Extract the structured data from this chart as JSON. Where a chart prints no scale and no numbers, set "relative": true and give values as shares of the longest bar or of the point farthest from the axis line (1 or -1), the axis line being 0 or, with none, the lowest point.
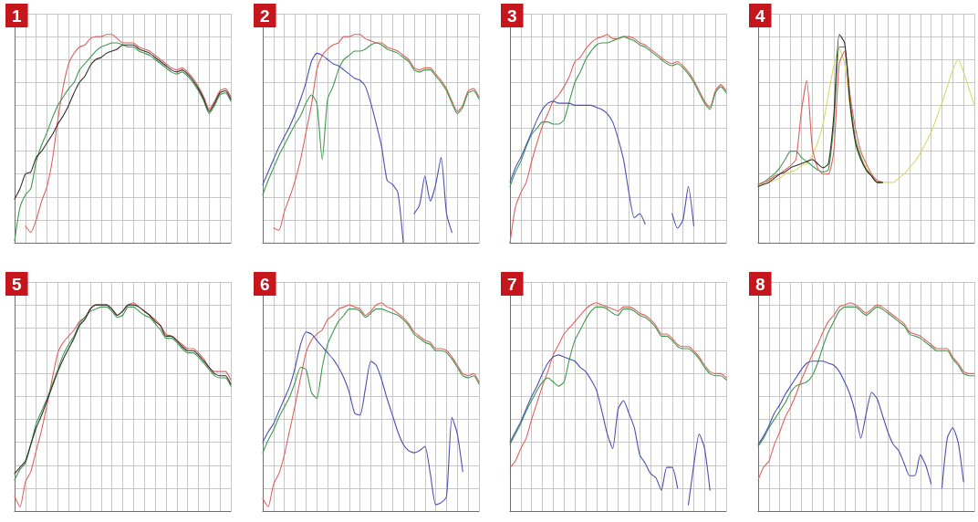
{
  "chart_data": [
    {
      "type": "line",
      "title": "1",
      "relative": true,
      "grid": true,
      "categories": [
        null,
        null,
        null,
        null,
        null,
        null,
        null,
        null,
        null,
        null,
        null,
        null,
        null,
        null,
        null,
        null,
        null,
        null,
        null,
        null,
        null,
        null,
        null,
        null,
        null,
        null,
        null,
        null,
        null,
        null,
        null,
        null,
        null,
        null,
        null,
        null,
        null,
        null,
        null,
        null,
        null
      ],
      "series": [
        {
          "color": "#e0625f",
          "values": [
            null,
            null,
            0.08,
            0.05,
            0.11,
            0.2,
            0.27,
            0.4,
            0.59,
            0.75,
            0.86,
            0.91,
            0.94,
            0.95,
            0.98,
            0.99,
            0.99,
            1,
            1,
            0.98,
            0.96,
            0.96,
            0.96,
            0.94,
            0.93,
            0.92,
            0.9,
            0.88,
            0.86,
            0.84,
            0.83,
            0.84,
            0.82,
            0.79,
            0.75,
            0.7,
            0.64,
            0.68,
            0.73,
            0.74,
            0.7
          ]
        },
        {
          "color": "#3f9a4f",
          "values": [
            0.01,
            0.17,
            0.23,
            0.26,
            0.39,
            0.47,
            0.53,
            0.6,
            0.66,
            0.7,
            0.74,
            0.77,
            0.83,
            0.86,
            0.89,
            0.92,
            0.94,
            0.95,
            0.96,
            0.96,
            0.95,
            0.94,
            0.94,
            0.92,
            0.91,
            0.9,
            0.88,
            0.86,
            0.84,
            0.82,
            0.81,
            0.82,
            0.8,
            0.77,
            0.73,
            0.68,
            0.62,
            0.66,
            0.71,
            0.72,
            0.68
          ]
        },
        {
          "color": "#2e2e2e",
          "values": [
            0.21,
            0.26,
            0.33,
            0.34,
            0.41,
            0.44,
            0.48,
            0.52,
            0.57,
            0.61,
            0.66,
            0.72,
            0.77,
            0.8,
            0.85,
            0.88,
            0.89,
            0.91,
            0.92,
            0.93,
            0.95,
            0.95,
            0.95,
            0.93,
            0.92,
            0.91,
            0.89,
            0.87,
            0.85,
            0.83,
            0.82,
            0.83,
            0.81,
            0.78,
            0.74,
            0.69,
            0.63,
            0.67,
            0.72,
            0.73,
            0.69
          ]
        }
      ]
    },
    {
      "type": "line",
      "title": "2",
      "relative": true,
      "grid": true,
      "categories": [
        null,
        null,
        null,
        null,
        null,
        null,
        null,
        null,
        null,
        null,
        null,
        null,
        null,
        null,
        null,
        null,
        null,
        null,
        null,
        null,
        null,
        null,
        null,
        null,
        null,
        null,
        null,
        null,
        null,
        null,
        null,
        null,
        null,
        null,
        null,
        null,
        null,
        null,
        null,
        null,
        null
      ],
      "series": [
        {
          "color": "#e0625f",
          "values": [
            null,
            null,
            0.07,
            0.06,
            0.15,
            0.22,
            0.3,
            0.4,
            0.53,
            0.66,
            0.83,
            0.9,
            0.93,
            0.95,
            0.96,
            0.99,
            0.99,
            1,
            1,
            0.98,
            0.97,
            0.96,
            0.96,
            0.94,
            0.93,
            0.92,
            0.9,
            0.88,
            0.84,
            0.83,
            0.84,
            0.84,
            0.81,
            0.78,
            0.74,
            0.68,
            0.63,
            0.66,
            0.73,
            0.74,
            0.7
          ]
        },
        {
          "color": "#3f9a4f",
          "values": [
            0.23,
            0.3,
            0.36,
            0.42,
            0.47,
            0.52,
            0.57,
            0.61,
            0.67,
            0.71,
            0.67,
            0.4,
            0.69,
            0.75,
            0.83,
            0.88,
            0.9,
            0.92,
            0.92,
            0.93,
            0.95,
            0.96,
            0.95,
            0.93,
            0.92,
            0.91,
            0.89,
            0.87,
            0.83,
            0.82,
            0.83,
            0.83,
            0.8,
            0.77,
            0.73,
            0.67,
            0.62,
            0.65,
            0.72,
            0.73,
            0.69
          ]
        },
        {
          "color": "#4a4fb5",
          "values": [
            0.28,
            0.34,
            0.4,
            0.46,
            0.51,
            0.56,
            0.62,
            0.69,
            0.77,
            0.87,
            0.91,
            0.9,
            0.88,
            0.86,
            0.85,
            0.83,
            0.81,
            0.79,
            0.78,
            0.75,
            0.67,
            0.57,
            0.46,
            0.3,
            0.28,
            0.24,
            0,
            null,
            0.14,
            0.18,
            0.32,
            0.2,
            0.28,
            0.41,
            0.14,
            0.05,
            null,
            null,
            null,
            null,
            null
          ]
        }
      ]
    },
    {
      "type": "line",
      "title": "3",
      "relative": true,
      "grid": true,
      "categories": [
        null,
        null,
        null,
        null,
        null,
        null,
        null,
        null,
        null,
        null,
        null,
        null,
        null,
        null,
        null,
        null,
        null,
        null,
        null,
        null,
        null,
        null,
        null,
        null,
        null,
        null,
        null,
        null,
        null,
        null,
        null,
        null,
        null,
        null,
        null,
        null,
        null,
        null,
        null,
        null,
        null
      ],
      "series": [
        {
          "color": "#e0625f",
          "values": [
            0,
            0.17,
            0.24,
            0.29,
            0.39,
            0.48,
            0.56,
            0.62,
            0.68,
            0.71,
            0.75,
            0.8,
            0.87,
            0.89,
            0.93,
            0.96,
            0.98,
            0.99,
            1,
            0.98,
            0.98,
            0.99,
            0.99,
            0.98,
            0.96,
            0.95,
            0.93,
            0.91,
            0.89,
            0.87,
            0.86,
            0.87,
            0.85,
            0.82,
            0.78,
            0.73,
            0.68,
            0.65,
            0.73,
            0.76,
            0.73
          ]
        },
        {
          "color": "#3f9a4f",
          "values": [
            0.27,
            0.34,
            0.39,
            0.46,
            0.52,
            0.55,
            0.58,
            0.58,
            0.57,
            0.57,
            0.59,
            0.68,
            0.77,
            0.82,
            0.88,
            0.92,
            0.95,
            0.96,
            0.96,
            0.97,
            0.98,
            0.99,
            0.98,
            0.97,
            0.95,
            0.94,
            0.92,
            0.9,
            0.88,
            0.86,
            0.85,
            0.86,
            0.84,
            0.81,
            0.77,
            0.72,
            0.67,
            0.64,
            0.72,
            0.75,
            0.72
          ]
        },
        {
          "color": "#4a4fb5",
          "values": [
            0.29,
            0.36,
            0.41,
            0.47,
            0.53,
            0.59,
            0.64,
            0.67,
            0.68,
            0.67,
            0.67,
            0.67,
            0.66,
            0.66,
            0.66,
            0.66,
            0.65,
            0.64,
            0.62,
            0.58,
            0.5,
            0.4,
            0.24,
            0.12,
            0.14,
            0.09,
            null,
            null,
            null,
            null,
            0.14,
            0.07,
            0.11,
            0.27,
            0.08,
            null,
            null,
            null,
            null,
            null,
            null
          ]
        }
      ]
    },
    {
      "type": "line",
      "title": "4",
      "relative": true,
      "grid": true,
      "categories": [
        null,
        null,
        null,
        null,
        null,
        null,
        null,
        null,
        null,
        null,
        null,
        null,
        null,
        null,
        null,
        null,
        null,
        null,
        null,
        null,
        null,
        null,
        null,
        null,
        null,
        null,
        null,
        null,
        null,
        null,
        null,
        null,
        null,
        null,
        null,
        null,
        null,
        null,
        null,
        null,
        null
      ],
      "series": [
        {
          "color": "#d9d96a",
          "values": [
            0.28,
            0.28,
            0.29,
            0.3,
            0.31,
            0.33,
            0.34,
            0.35,
            0.37,
            0.38,
            0.42,
            0.48,
            0.57,
            0.71,
            0.85,
            0.93,
            0.86,
            0.65,
            0.5,
            0.42,
            0.36,
            0.32,
            0.29,
            0.29,
            0.29,
            0.29,
            0.31,
            0.33,
            0.36,
            0.39,
            0.43,
            0.48,
            0.53,
            0.6,
            0.67,
            0.75,
            0.83,
            0.88,
            0.82,
            0.74,
            0.66
          ]
        },
        {
          "color": "#3f9a4f",
          "values": [
            0.28,
            0.29,
            0.31,
            0.33,
            0.36,
            0.4,
            0.44,
            0.44,
            0.41,
            0.39,
            0.37,
            0.35,
            0.34,
            0.35,
            0.57,
            0.94,
            0.94,
            0.69,
            0.5,
            0.41,
            0.35,
            0.32,
            0.29,
            0.29,
            null,
            null,
            null,
            null,
            null,
            null,
            null,
            null,
            null,
            null,
            null,
            null,
            null,
            null,
            null,
            null,
            null
          ]
        },
        {
          "color": "#e0625f",
          "values": [
            0.28,
            0.29,
            0.3,
            0.32,
            0.33,
            0.35,
            0.37,
            0.4,
            0.63,
            0.78,
            0.46,
            0.36,
            0.33,
            0.33,
            0.44,
            0.86,
            0.92,
            0.71,
            0.55,
            0.44,
            0.38,
            0.33,
            0.3,
            0.29,
            null,
            null,
            null,
            null,
            null,
            null,
            null,
            null,
            null,
            null,
            null,
            null,
            null,
            null,
            null,
            null,
            null
          ]
        },
        {
          "color": "#2e2e2e",
          "values": [
            0.27,
            0.28,
            0.29,
            0.31,
            0.33,
            0.34,
            0.36,
            0.37,
            0.38,
            0.39,
            0.4,
            0.38,
            0.36,
            0.38,
            0.61,
            1,
            0.96,
            0.67,
            0.48,
            0.4,
            0.35,
            0.32,
            0.29,
            0.29,
            null,
            null,
            null,
            null,
            null,
            null,
            null,
            null,
            null,
            null,
            null,
            null,
            null,
            null,
            null,
            null,
            null
          ]
        }
      ]
    },
    {
      "type": "line",
      "title": "5",
      "relative": true,
      "grid": true,
      "categories": [
        null,
        null,
        null,
        null,
        null,
        null,
        null,
        null,
        null,
        null,
        null,
        null,
        null,
        null,
        null,
        null,
        null,
        null,
        null,
        null,
        null,
        null,
        null,
        null,
        null,
        null,
        null,
        null,
        null,
        null,
        null,
        null,
        null,
        null,
        null,
        null,
        null,
        null,
        null,
        null,
        null
      ],
      "series": [
        {
          "color": "#e0625f",
          "values": [
            0.07,
            0.02,
            0.14,
            0.19,
            0.29,
            0.39,
            0.51,
            0.64,
            0.76,
            0.81,
            0.84,
            0.87,
            0.91,
            0.93,
            0.97,
            0.99,
            0.99,
            0.99,
            0.97,
            0.94,
            0.96,
            0.99,
            1,
            0.98,
            0.96,
            0.94,
            0.92,
            0.89,
            0.85,
            0.84,
            0.82,
            0.8,
            0.78,
            0.78,
            0.76,
            0.73,
            0.69,
            0.67,
            0.67,
            0.67,
            0.63
          ]
        },
        {
          "color": "#3f9a4f",
          "values": [
            0.15,
            0.2,
            0.23,
            0.32,
            0.42,
            0.48,
            0.54,
            0.61,
            0.68,
            0.75,
            0.8,
            0.84,
            0.9,
            0.93,
            0.96,
            0.97,
            0.98,
            0.98,
            0.96,
            0.93,
            0.94,
            0.98,
            0.98,
            0.96,
            0.94,
            0.93,
            0.9,
            0.87,
            0.83,
            0.83,
            0.81,
            0.78,
            0.76,
            0.76,
            0.74,
            0.71,
            0.68,
            0.65,
            0.64,
            0.64,
            0.6
          ]
        },
        {
          "color": "#2e2e2e",
          "values": [
            0.18,
            0.21,
            0.24,
            0.32,
            0.4,
            0.46,
            0.53,
            0.6,
            0.67,
            0.73,
            0.78,
            0.83,
            0.89,
            0.92,
            0.97,
            0.99,
            0.99,
            0.99,
            0.97,
            0.94,
            0.96,
            0.99,
            0.99,
            0.98,
            0.96,
            0.94,
            0.91,
            0.89,
            0.84,
            0.84,
            0.82,
            0.79,
            0.77,
            0.77,
            0.75,
            0.72,
            0.69,
            0.66,
            0.65,
            0.65,
            0.61
          ]
        }
      ]
    },
    {
      "type": "line",
      "title": "6",
      "relative": true,
      "grid": true,
      "categories": [
        null,
        null,
        null,
        null,
        null,
        null,
        null,
        null,
        null,
        null,
        null,
        null,
        null,
        null,
        null,
        null,
        null,
        null,
        null,
        null,
        null,
        null,
        null,
        null,
        null,
        null,
        null,
        null,
        null,
        null,
        null,
        null,
        null,
        null,
        null,
        null,
        null,
        null,
        null,
        null,
        null
      ],
      "series": [
        {
          "color": "#e0625f",
          "values": [
            0.06,
            0.02,
            0.13,
            0.18,
            0.27,
            0.39,
            0.51,
            0.64,
            0.76,
            0.82,
            0.85,
            0.87,
            0.92,
            0.94,
            0.97,
            0.98,
            0.99,
            0.98,
            0.97,
            0.94,
            0.96,
            0.99,
            1,
            0.98,
            0.97,
            0.95,
            0.93,
            0.9,
            0.86,
            0.84,
            0.82,
            0.81,
            0.78,
            0.78,
            0.77,
            0.74,
            0.7,
            0.66,
            0.65,
            0.66,
            0.62
          ]
        },
        {
          "color": "#3f9a4f",
          "values": [
            0.28,
            0.34,
            0.39,
            0.45,
            0.5,
            0.55,
            0.62,
            0.69,
            0.68,
            0.57,
            0.54,
            0.69,
            0.8,
            0.86,
            0.91,
            0.94,
            0.97,
            0.97,
            0.96,
            0.93,
            0.95,
            0.97,
            0.97,
            0.96,
            0.95,
            0.94,
            0.92,
            0.89,
            0.85,
            0.83,
            0.81,
            0.8,
            0.77,
            0.77,
            0.76,
            0.73,
            0.69,
            0.65,
            0.64,
            0.65,
            0.61
          ]
        },
        {
          "color": "#4a4fb5",
          "values": [
            0.33,
            0.38,
            0.42,
            0.48,
            0.54,
            0.6,
            0.69,
            0.8,
            0.86,
            0.85,
            0.82,
            0.79,
            0.76,
            0.73,
            0.69,
            0.64,
            0.57,
            0.47,
            0.46,
            0.59,
            0.72,
            0.7,
            0.63,
            0.54,
            0.46,
            0.38,
            0.32,
            0.29,
            0.28,
            0.29,
            0.31,
            0.18,
            0.03,
            0.04,
            0.07,
            0.45,
            0.37,
            0.19,
            null,
            null,
            null
          ]
        }
      ]
    },
    {
      "type": "line",
      "title": "7",
      "relative": true,
      "grid": true,
      "categories": [
        null,
        null,
        null,
        null,
        null,
        null,
        null,
        null,
        null,
        null,
        null,
        null,
        null,
        null,
        null,
        null,
        null,
        null,
        null,
        null,
        null,
        null,
        null,
        null,
        null,
        null,
        null,
        null,
        null,
        null,
        null,
        null,
        null,
        null,
        null,
        null,
        null,
        null,
        null,
        null,
        null
      ],
      "series": [
        {
          "color": "#e0625f",
          "values": [
            0.21,
            0.24,
            0.3,
            0.35,
            0.44,
            0.52,
            0.6,
            0.67,
            0.75,
            0.8,
            0.85,
            0.88,
            0.91,
            0.94,
            0.97,
            0.99,
            1,
            0.99,
            0.98,
            0.97,
            0.96,
            0.98,
            0.98,
            0.97,
            0.95,
            0.94,
            0.92,
            0.89,
            0.85,
            0.85,
            0.83,
            0.8,
            0.79,
            0.79,
            0.77,
            0.74,
            0.7,
            0.67,
            0.66,
            0.66,
            0.64
          ]
        },
        {
          "color": "#3f9a4f",
          "values": [
            0.32,
            0.37,
            0.42,
            0.48,
            0.53,
            0.58,
            0.62,
            0.64,
            0.62,
            0.6,
            0.62,
            0.73,
            0.82,
            0.87,
            0.92,
            0.96,
            0.98,
            0.98,
            0.97,
            0.95,
            0.94,
            0.97,
            0.97,
            0.96,
            0.94,
            0.93,
            0.91,
            0.88,
            0.84,
            0.84,
            0.82,
            0.79,
            0.78,
            0.78,
            0.76,
            0.73,
            0.69,
            0.66,
            0.65,
            0.65,
            0.63
          ]
        },
        {
          "color": "#4a4fb5",
          "values": [
            0.33,
            0.38,
            0.43,
            0.49,
            0.55,
            0.6,
            0.66,
            0.71,
            0.74,
            0.75,
            0.74,
            0.73,
            0.72,
            0.69,
            0.67,
            0.63,
            0.58,
            0.48,
            0.37,
            0.3,
            0.49,
            0.53,
            0.47,
            0.4,
            0.27,
            0.23,
            0.18,
            0.16,
            0.1,
            0.21,
            0.21,
            0.11,
            null,
            0.03,
            0.22,
            0.37,
            0.3,
            0.1,
            null,
            null,
            null
          ]
        }
      ]
    },
    {
      "type": "line",
      "title": "8",
      "relative": true,
      "grid": true,
      "categories": [
        null,
        null,
        null,
        null,
        null,
        null,
        null,
        null,
        null,
        null,
        null,
        null,
        null,
        null,
        null,
        null,
        null,
        null,
        null,
        null,
        null,
        null,
        null,
        null,
        null,
        null,
        null,
        null,
        null,
        null,
        null,
        null,
        null,
        null,
        null,
        null,
        null,
        null,
        null,
        null,
        null
      ],
      "series": [
        {
          "color": "#e0625f",
          "values": [
            0.15,
            0.21,
            0.24,
            0.32,
            0.38,
            0.45,
            0.5,
            0.56,
            0.63,
            0.69,
            0.75,
            0.8,
            0.86,
            0.91,
            0.94,
            0.98,
            0.99,
            1,
            0.99,
            0.97,
            0.95,
            0.97,
            0.99,
            0.98,
            0.96,
            0.94,
            0.92,
            0.9,
            0.86,
            0.85,
            0.84,
            0.82,
            0.8,
            0.78,
            0.78,
            0.78,
            0.74,
            0.71,
            0.67,
            0.66,
            0.66
          ]
        },
        {
          "color": "#3f9a4f",
          "values": [
            0.31,
            0.35,
            0.4,
            0.44,
            0.48,
            0.52,
            0.57,
            0.6,
            0.61,
            0.62,
            0.65,
            0.71,
            0.79,
            0.86,
            0.91,
            0.96,
            0.98,
            0.98,
            0.98,
            0.96,
            0.94,
            0.96,
            0.98,
            0.97,
            0.95,
            0.93,
            0.91,
            0.89,
            0.85,
            0.84,
            0.83,
            0.81,
            0.79,
            0.77,
            0.77,
            0.77,
            0.73,
            0.7,
            0.66,
            0.65,
            0.65
          ]
        },
        {
          "color": "#4a4fb5",
          "values": [
            0.32,
            0.36,
            0.41,
            0.47,
            0.51,
            0.56,
            0.6,
            0.64,
            0.68,
            0.71,
            0.72,
            0.72,
            0.72,
            0.71,
            0.7,
            0.67,
            0.62,
            0.56,
            0.47,
            0.35,
            0.47,
            0.57,
            0.54,
            0.46,
            0.38,
            0.32,
            0.29,
            0.23,
            0.17,
            0.17,
            0.27,
            0.22,
            0.13,
            null,
            0.11,
            0.35,
            0.4,
            0.33,
            0.14,
            null,
            null
          ]
        }
      ]
    }
  ]
}
